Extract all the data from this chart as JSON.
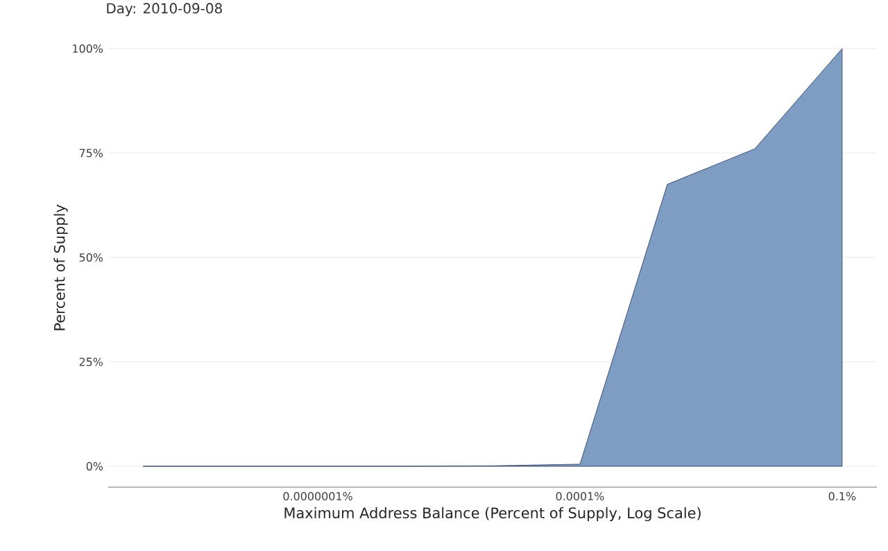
{
  "chart_data": {
    "type": "area",
    "title": "Day: 2010-09-08",
    "xlabel": "Maximum Address Balance (Percent of Supply, Log Scale)",
    "ylabel": "Percent of Supply",
    "x": [
      1e-09,
      1e-08,
      1e-07,
      1e-06,
      1e-05,
      0.0001,
      0.001,
      0.01,
      0.1
    ],
    "values": [
      0,
      0,
      0,
      0,
      0.1,
      0.5,
      67.5,
      76,
      100
    ],
    "color": "#7f9dc2",
    "log": "x",
    "grid": "y",
    "xlim": [
      4e-10,
      0.25
    ],
    "ylim": [
      -5,
      100
    ],
    "xticks": [
      {
        "value": 1e-07,
        "label": "0.0000001%"
      },
      {
        "value": 0.0001,
        "label": "0.0001%"
      },
      {
        "value": 0.1,
        "label": "0.1%"
      }
    ],
    "yticks": [
      {
        "value": 0,
        "label": "0%"
      },
      {
        "value": 25,
        "label": "25%"
      },
      {
        "value": 50,
        "label": "50%"
      },
      {
        "value": 75,
        "label": "75%"
      },
      {
        "value": 100,
        "label": "100%"
      }
    ]
  }
}
